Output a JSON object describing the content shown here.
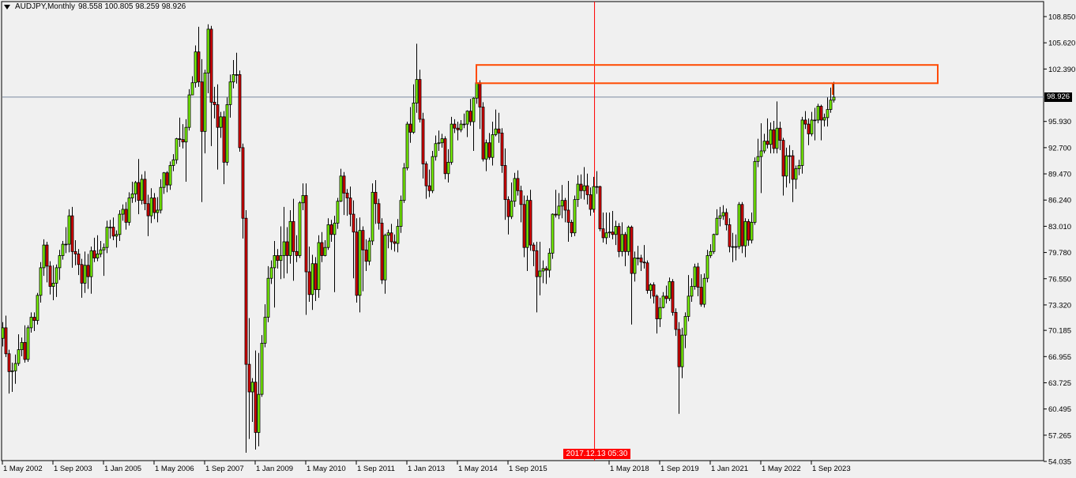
{
  "header": {
    "symbol_timeframe": "AUDJPY,Monthly",
    "ohlc": "98.558 100.805 98.259 98.926"
  },
  "chart_data": {
    "type": "candlestick",
    "symbol": "AUDJPY",
    "timeframe": "Monthly",
    "first_bar": "2002-05",
    "ylim": [
      54.035,
      108.85
    ],
    "grid": false,
    "colors": {
      "bull": "#7cfc00",
      "bear": "#e00000",
      "outline": "#000000",
      "background": "#f0f0f0",
      "bid_line": "#7a8aa0",
      "crosshair": "#ff0000",
      "rectangle": "#ff4a00"
    },
    "y_ticks": [
      "108.850",
      "105.620",
      "102.390",
      "95.930",
      "92.700",
      "89.470",
      "86.240",
      "83.010",
      "79.780",
      "76.550",
      "73.320",
      "70.185",
      "66.955",
      "63.725",
      "60.495",
      "57.265",
      "54.035"
    ],
    "x_ticks": [
      {
        "date": "2002-05",
        "label": "1 May 2002"
      },
      {
        "date": "2003-09",
        "label": "1 Sep 2003"
      },
      {
        "date": "2005-01",
        "label": "1 Jan 2005"
      },
      {
        "date": "2006-05",
        "label": "1 May 2006"
      },
      {
        "date": "2007-09",
        "label": "1 Sep 2007"
      },
      {
        "date": "2009-01",
        "label": "1 Jan 2009"
      },
      {
        "date": "2010-05",
        "label": "1 May 2010"
      },
      {
        "date": "2011-09",
        "label": "1 Sep 2011"
      },
      {
        "date": "2013-01",
        "label": "1 Jan 2013"
      },
      {
        "date": "2014-05",
        "label": "1 May 2014"
      },
      {
        "date": "2015-09",
        "label": "1 Sep 2015"
      },
      {
        "date": "2018-05",
        "label": "1 May 2018"
      },
      {
        "date": "2019-09",
        "label": "1 Sep 2019"
      },
      {
        "date": "2021-01",
        "label": "1 Jan 2021"
      },
      {
        "date": "2022-05",
        "label": "1 May 2022"
      },
      {
        "date": "2023-09",
        "label": "1 Sep 2023"
      }
    ],
    "bid_price": "98.926",
    "crosshair_time": "2017.12.13 05:30",
    "rectangle": {
      "time1": "2014-11",
      "time2": "2027-01",
      "price_top": 102.89,
      "price_bottom": 100.64
    },
    "marker_line": {
      "time": "2024-04",
      "price_top": 100.64,
      "price_bottom": 99.2
    },
    "open": [
      69.2,
      70.5,
      67.3,
      65.1,
      65.2,
      66.1,
      67.8,
      68.7,
      66.6,
      70.5,
      71.8,
      71.4,
      74.5,
      77.9,
      80.7,
      78.1,
      75.6,
      76.0,
      77.9,
      79.4,
      80.8,
      80.8,
      84.3,
      79.9,
      79.6,
      78.3,
      76.0,
      78.2,
      76.8,
      80.0,
      79.1,
      79.6,
      80.1,
      80.4,
      82.9,
      82.9,
      81.8,
      82.0,
      84.5,
      85.1,
      83.5,
      86.5,
      87.0,
      88.4,
      86.2,
      88.8,
      85.8,
      84.3,
      86.5,
      84.7,
      85.0,
      87.8,
      89.6,
      88.1,
      90.5,
      91.2,
      93.8,
      93.7,
      93.4,
      95.2,
      99.2,
      100.7,
      104.5,
      100.8,
      94.7,
      101.9,
      107.3,
      98.3,
      98.0,
      95.2,
      96.5,
      90.9,
      98.0,
      100.8,
      101.7,
      101.7,
      92.7,
      84.0,
      66.0,
      62.6,
      63.8,
      57.6,
      62.3,
      68.6,
      71.8,
      76.6,
      77.9,
      79.4,
      78.8,
      79.4,
      81.1,
      79.4,
      83.6,
      79.9,
      79.4,
      85.9,
      86.8,
      77.4,
      74.6,
      78.4,
      75.2,
      81.0,
      79.4,
      80.4,
      83.2,
      82.0,
      83.4,
      86.1,
      89.2,
      87.1,
      86.5,
      84.5,
      82.3,
      74.5,
      82.5,
      80.1,
      78.7,
      81.2,
      87.2,
      85.8,
      83.4,
      76.4,
      81.9,
      82.2,
      81.1,
      80.9,
      83.0,
      86.2,
      90.2,
      95.6,
      94.6,
      98.2,
      101.1,
      96.2,
      90.7,
      88.0,
      87.4,
      91.6,
      93.2,
      93.3,
      93.8,
      89.5,
      90.9,
      95.6,
      95.1,
      94.9,
      95.6,
      95.6,
      97.2,
      95.9,
      98.8,
      100.7,
      97.7,
      91.3,
      93.3,
      91.5,
      94.3,
      95.0,
      94.5,
      90.5,
      86.3,
      84.2,
      86.1,
      88.9,
      87.4,
      85.7,
      80.4,
      86.2,
      80.7,
      80.0,
      76.8,
      77.5,
      77.8,
      77.6,
      79.7,
      84.5,
      84.4,
      85.5,
      86.2,
      85.0,
      83.5,
      82.2,
      86.3,
      88.2,
      87.4,
      88.0,
      86.9,
      85.1,
      87.9,
      87.9,
      82.7,
      81.6,
      82.2,
      82.3,
      82.0,
      83.0,
      79.9,
      82.0,
      79.9,
      82.9,
      77.2,
      79.1,
      79.1,
      78.6,
      78.5,
      75.1,
      75.8,
      74.4,
      71.6,
      73.0,
      74.4,
      74.1,
      76.2,
      72.4,
      70.3,
      65.7,
      69.6,
      71.9,
      74.4,
      75.6,
      78.0,
      75.5,
      73.4,
      76.6,
      79.4,
      79.9,
      82.0,
      84.0,
      84.3,
      84.7,
      83.2,
      80.5,
      80.5,
      80.5,
      85.7,
      80.6,
      83.6,
      81.3,
      83.5,
      91.0,
      91.6,
      92.3,
      93.5,
      93.1,
      94.9,
      92.6,
      95.1,
      93.6,
      89.2,
      91.7,
      91.7,
      88.8,
      90.1,
      90.5,
      96.1,
      95.6,
      94.4,
      96.1,
      96.1,
      97.8,
      96.1,
      96.4,
      97.4,
      98.558
    ],
    "high": [
      71.2,
      72.0,
      67.8,
      66.2,
      67.2,
      69.7,
      69.3,
      70.8,
      70.8,
      72.4,
      72.4,
      74.8,
      78.6,
      81.4,
      81.1,
      78.7,
      78.2,
      78.3,
      80.1,
      81.2,
      82.9,
      85.1,
      85.4,
      81.3,
      80.2,
      79.0,
      79.9,
      79.6,
      80.5,
      81.6,
      81.9,
      81.2,
      80.9,
      83.7,
      83.8,
      84.1,
      82.5,
      85.0,
      85.7,
      86.0,
      87.2,
      88.5,
      88.6,
      91.3,
      89.4,
      89.8,
      86.9,
      87.7,
      87.1,
      86.6,
      88.8,
      89.7,
      89.8,
      91.0,
      91.9,
      93.9,
      96.4,
      95.6,
      96.2,
      99.9,
      101.5,
      105.3,
      107.6,
      103.6,
      102.3,
      107.9,
      107.7,
      100.2,
      100.5,
      97.1,
      97.2,
      98.9,
      101.7,
      103.5,
      104.4,
      102.2,
      93.2,
      85.0,
      71.7,
      64.3,
      67.7,
      67.4,
      69.6,
      73.4,
      78.1,
      78.8,
      81.2,
      80.2,
      83.0,
      85.4,
      82.9,
      85.0,
      86.4,
      81.9,
      86.1,
      88.3,
      88.3,
      80.5,
      79.5,
      79.2,
      81.9,
      82.3,
      81.3,
      84.0,
      83.8,
      84.3,
      86.5,
      90.1,
      89.7,
      87.6,
      87.9,
      86.2,
      84.0,
      84.1,
      83.0,
      81.4,
      81.6,
      88.3,
      88.7,
      86.4,
      84.0,
      82.1,
      82.6,
      83.3,
      82.0,
      83.9,
      86.8,
      90.8,
      95.9,
      97.7,
      100.5,
      105.5,
      102.3,
      97.0,
      91.0,
      90.0,
      92.3,
      94.2,
      94.8,
      94.4,
      94.1,
      92.5,
      96.5,
      96.2,
      95.9,
      96.1,
      96.9,
      97.3,
      98.7,
      98.9,
      101.5,
      101.0,
      98.3,
      93.7,
      94.5,
      95.9,
      97.4,
      97.0,
      95.1,
      92.6,
      86.7,
      88.4,
      89.6,
      89.9,
      88.0,
      86.8,
      86.8,
      87.5,
      81.0,
      81.1,
      81.1,
      78.8,
      78.1,
      80.3,
      84.6,
      87.5,
      87.1,
      88.1,
      86.5,
      88.6,
      83.8,
      86.8,
      89.3,
      89.4,
      90.3,
      89.5,
      87.8,
      89.1,
      89.8,
      88.0,
      84.7,
      84.7,
      84.7,
      84.9,
      83.7,
      83.4,
      83.5,
      82.3,
      83.1,
      83.1,
      79.9,
      80.6,
      79.5,
      80.7,
      78.8,
      76.0,
      76.1,
      74.6,
      74.2,
      74.9,
      75.7,
      76.7,
      76.5,
      72.9,
      71.2,
      70.5,
      72.4,
      77.0,
      76.6,
      78.4,
      78.5,
      77.1,
      77.2,
      80.1,
      80.8,
      82.1,
      85.1,
      85.4,
      85.6,
      85.2,
      84.0,
      82.2,
      82.0,
      86.0,
      86.0,
      84.0,
      83.9,
      84.7,
      91.5,
      93.8,
      95.7,
      94.4,
      96.3,
      95.8,
      96.0,
      98.4,
      95.9,
      93.9,
      92.7,
      93.0,
      92.4,
      90.5,
      91.2,
      96.5,
      97.2,
      96.3,
      97.1,
      97.6,
      98.1,
      98.0,
      96.9,
      98.9,
      100.1,
      100.805
    ],
    "low": [
      68.2,
      66.9,
      62.4,
      62.6,
      63.6,
      65.8,
      67.0,
      66.2,
      66.3,
      69.9,
      70.1,
      70.9,
      73.6,
      76.9,
      76.1,
      74.6,
      73.9,
      74.3,
      76.4,
      78.9,
      79.7,
      79.8,
      77.9,
      78.2,
      77.0,
      74.2,
      74.8,
      75.3,
      74.7,
      78.6,
      78.7,
      79.2,
      76.9,
      79.7,
      81.5,
      81.3,
      80.4,
      81.2,
      83.7,
      82.6,
      83.1,
      85.9,
      86.0,
      84.5,
      85.7,
      85.0,
      81.8,
      83.4,
      83.9,
      83.5,
      84.6,
      87.0,
      87.2,
      87.5,
      89.8,
      90.7,
      92.8,
      92.6,
      88.5,
      94.8,
      99.5,
      100.1,
      100.2,
      86.0,
      92.0,
      99.4,
      92.9,
      96.3,
      90.0,
      93.9,
      88.2,
      90.5,
      96.4,
      100.0,
      100.6,
      92.2,
      81.5,
      55.1,
      56.8,
      58.9,
      55.5,
      55.9,
      62.0,
      68.1,
      71.2,
      75.9,
      73.0,
      77.8,
      76.5,
      76.6,
      77.2,
      78.4,
      76.3,
      78.6,
      79.1,
      85.0,
      72.1,
      73.7,
      72.7,
      73.8,
      74.2,
      78.6,
      79.3,
      80.1,
      81.1,
      74.9,
      82.7,
      86.0,
      84.4,
      84.3,
      83.0,
      76.6,
      73.6,
      72.4,
      75.0,
      77.5,
      78.2,
      80.7,
      83.3,
      82.6,
      75.9,
      74.7,
      80.3,
      80.1,
      79.9,
      79.8,
      82.2,
      85.9,
      89.9,
      93.3,
      94.4,
      97.0,
      95.8,
      88.9,
      86.4,
      86.6,
      87.1,
      91.1,
      92.3,
      92.7,
      88.8,
      88.4,
      90.6,
      94.5,
      93.6,
      94.6,
      95.1,
      94.0,
      95.4,
      92.3,
      98.1,
      95.0,
      91.0,
      89.8,
      91.2,
      90.5,
      94.1,
      93.3,
      89.6,
      83.8,
      82.0,
      83.9,
      85.4,
      86.8,
      83.5,
      79.2,
      77.5,
      80.0,
      78.1,
      72.4,
      74.5,
      76.0,
      75.9,
      76.7,
      79.0,
      84.1,
      83.9,
      84.0,
      83.5,
      81.1,
      81.7,
      81.8,
      85.4,
      86.4,
      86.3,
      85.7,
      84.3,
      84.7,
      87.0,
      82.4,
      81.0,
      80.8,
      81.6,
      81.4,
      80.7,
      79.2,
      79.3,
      78.1,
      79.4,
      70.9,
      76.2,
      78.2,
      77.5,
      77.8,
      74.7,
      74.1,
      73.5,
      69.8,
      70.6,
      72.9,
      73.5,
      73.8,
      72.0,
      69.5,
      59.9,
      64.3,
      68.0,
      71.3,
      73.7,
      75.2,
      74.4,
      73.1,
      73.0,
      76.1,
      79.1,
      79.6,
      81.9,
      83.0,
      83.8,
      82.5,
      79.8,
      78.6,
      78.8,
      80.2,
      79.7,
      79.2,
      80.6,
      80.9,
      83.2,
      90.3,
      87.1,
      92.0,
      92.6,
      92.0,
      92.0,
      92.0,
      92.4,
      86.8,
      87.8,
      88.3,
      86.0,
      87.6,
      89.3,
      89.5,
      95.0,
      93.0,
      94.1,
      93.6,
      95.7,
      93.6,
      95.3,
      95.3,
      97.0,
      98.259
    ],
    "close": [
      70.5,
      67.3,
      65.1,
      65.2,
      66.1,
      67.8,
      68.7,
      66.6,
      70.5,
      71.8,
      71.4,
      74.5,
      77.9,
      80.7,
      78.1,
      75.6,
      76.0,
      77.9,
      79.4,
      80.8,
      80.8,
      84.3,
      79.9,
      79.6,
      78.3,
      76.0,
      78.2,
      76.8,
      80.0,
      79.1,
      79.6,
      80.1,
      80.4,
      82.9,
      82.9,
      81.8,
      82.0,
      84.5,
      85.1,
      83.5,
      86.5,
      87.0,
      88.4,
      86.2,
      88.8,
      85.8,
      84.3,
      86.5,
      84.7,
      85.0,
      87.8,
      89.6,
      88.1,
      90.5,
      91.2,
      93.8,
      93.7,
      93.4,
      95.2,
      99.2,
      100.7,
      104.5,
      100.8,
      94.7,
      101.9,
      107.3,
      98.3,
      98.0,
      95.2,
      96.5,
      90.9,
      98.0,
      100.8,
      101.7,
      101.7,
      92.7,
      84.0,
      66.0,
      62.6,
      63.8,
      57.6,
      62.3,
      68.6,
      71.8,
      76.6,
      77.9,
      79.4,
      78.8,
      79.4,
      81.1,
      79.4,
      83.6,
      79.9,
      79.4,
      85.9,
      86.8,
      77.4,
      74.6,
      78.4,
      75.2,
      81.0,
      79.4,
      80.4,
      83.2,
      82.0,
      83.4,
      86.1,
      89.2,
      87.1,
      86.5,
      84.5,
      82.3,
      74.5,
      82.5,
      80.1,
      78.7,
      81.2,
      87.2,
      85.8,
      83.4,
      76.4,
      81.9,
      82.2,
      81.1,
      80.9,
      83.0,
      86.2,
      90.2,
      95.6,
      94.6,
      98.2,
      101.1,
      96.2,
      90.7,
      88.0,
      87.4,
      91.6,
      93.2,
      93.3,
      93.8,
      89.5,
      90.9,
      95.6,
      95.1,
      94.9,
      95.6,
      95.6,
      97.2,
      95.9,
      98.8,
      100.7,
      97.7,
      91.3,
      93.3,
      91.5,
      94.3,
      95.0,
      94.5,
      90.5,
      86.3,
      84.2,
      86.1,
      88.9,
      87.4,
      85.7,
      80.4,
      86.2,
      80.7,
      80.0,
      76.8,
      77.5,
      77.8,
      77.6,
      79.7,
      84.5,
      84.4,
      85.5,
      86.2,
      85.0,
      83.5,
      82.2,
      86.3,
      88.2,
      87.4,
      88.0,
      86.9,
      85.1,
      87.9,
      87.9,
      82.7,
      81.6,
      82.2,
      82.3,
      82.0,
      83.0,
      79.9,
      82.0,
      79.9,
      82.9,
      77.2,
      79.1,
      79.1,
      78.6,
      78.5,
      75.1,
      75.8,
      74.4,
      71.6,
      73.0,
      74.4,
      74.1,
      76.2,
      72.4,
      70.3,
      65.7,
      69.6,
      71.9,
      74.4,
      75.6,
      78.0,
      75.5,
      73.4,
      76.6,
      79.4,
      79.9,
      82.0,
      84.0,
      84.3,
      84.7,
      83.2,
      80.5,
      80.5,
      80.5,
      85.7,
      80.6,
      83.6,
      81.3,
      83.5,
      91.0,
      91.6,
      92.3,
      93.5,
      93.1,
      94.9,
      92.6,
      95.1,
      93.6,
      89.2,
      91.7,
      91.7,
      88.8,
      90.1,
      90.5,
      96.1,
      95.6,
      94.4,
      96.1,
      96.1,
      97.8,
      96.1,
      96.4,
      97.4,
      98.558,
      98.926
    ]
  }
}
